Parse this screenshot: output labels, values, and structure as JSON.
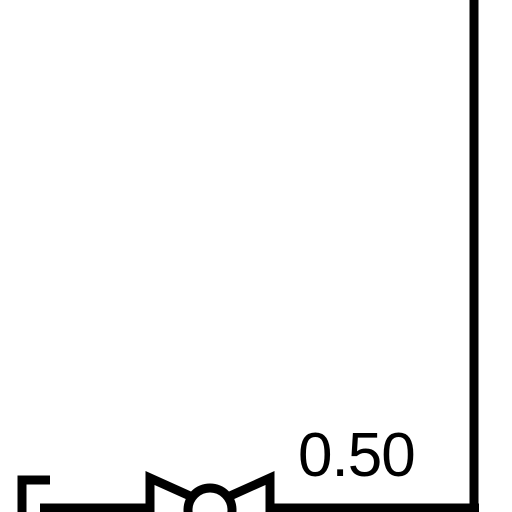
{
  "diagram": {
    "value_label": "0.50"
  },
  "colors": {
    "background": "#ffffff",
    "stroke": "#000000"
  },
  "symbols": [
    "wire",
    "valve-symbol",
    "bracket-symbol"
  ]
}
